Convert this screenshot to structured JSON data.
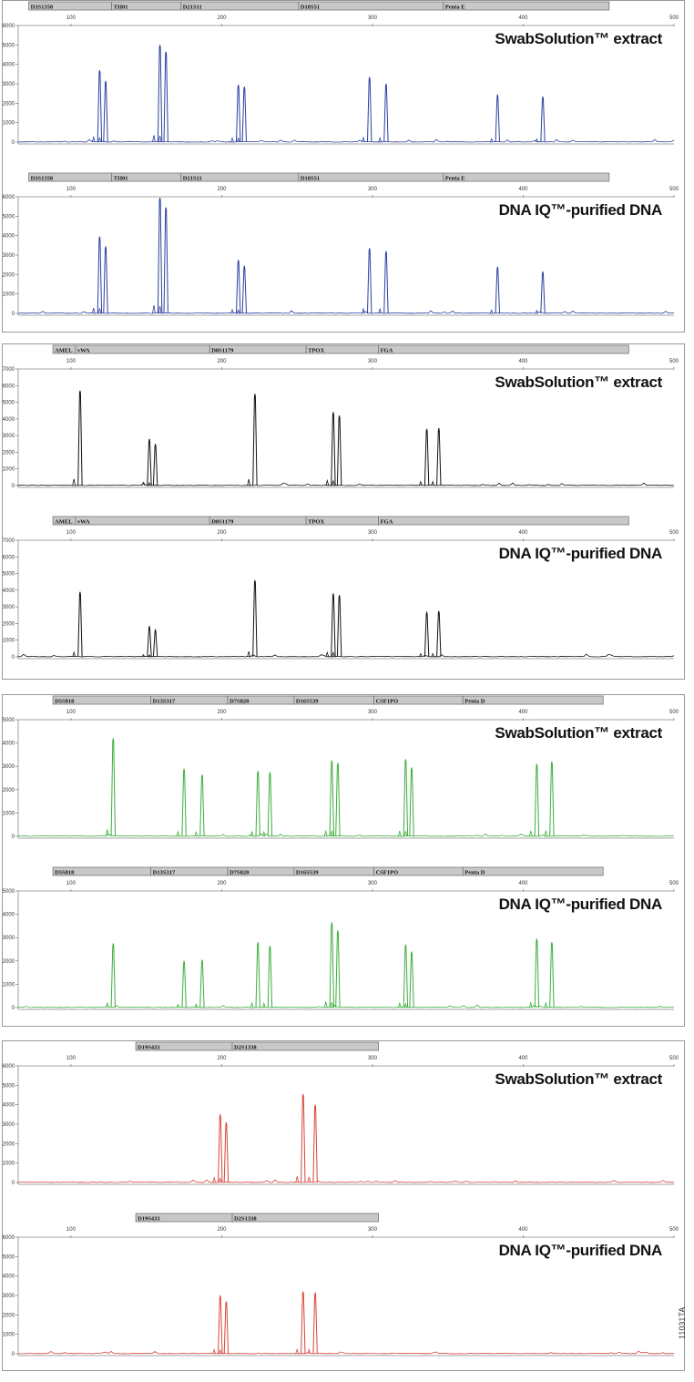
{
  "figure_id": "11031TA",
  "chart_data": [
    {
      "type": "line",
      "dye_color": "#2b3fa0",
      "x_ticks": [
        100,
        200,
        300,
        400,
        500
      ],
      "xlim": [
        65,
        500
      ],
      "loci": [
        {
          "name": "D3S1358",
          "start": 72,
          "end": 127
        },
        {
          "name": "TH01",
          "start": 127,
          "end": 173
        },
        {
          "name": "D21S11",
          "start": 173,
          "end": 251
        },
        {
          "name": "D18S51",
          "start": 251,
          "end": 347
        },
        {
          "name": "Penta E",
          "start": 347,
          "end": 457
        }
      ],
      "lanes": [
        {
          "label": "SwabSolution™ extract",
          "ylim": [
            0,
            6000
          ],
          "y_ticks": [
            0,
            1000,
            2000,
            3000,
            4000,
            5000,
            6000
          ],
          "peaks": [
            {
              "x": 119,
              "height": 3700
            },
            {
              "x": 123,
              "height": 3150
            },
            {
              "x": 159,
              "height": 5000
            },
            {
              "x": 163,
              "height": 4650
            },
            {
              "x": 211,
              "height": 2950
            },
            {
              "x": 215,
              "height": 2850
            },
            {
              "x": 298,
              "height": 3350
            },
            {
              "x": 309,
              "height": 3000
            },
            {
              "x": 383,
              "height": 2450
            },
            {
              "x": 413,
              "height": 2350
            }
          ]
        },
        {
          "label": "DNA IQ™-purified DNA",
          "ylim": [
            0,
            6000
          ],
          "y_ticks": [
            0,
            1000,
            2000,
            3000,
            4000,
            5000,
            6000
          ],
          "peaks": [
            {
              "x": 119,
              "height": 3950
            },
            {
              "x": 123,
              "height": 3450
            },
            {
              "x": 159,
              "height": 5950
            },
            {
              "x": 163,
              "height": 5450
            },
            {
              "x": 211,
              "height": 2750
            },
            {
              "x": 215,
              "height": 2450
            },
            {
              "x": 298,
              "height": 3350
            },
            {
              "x": 309,
              "height": 3200
            },
            {
              "x": 383,
              "height": 2400
            },
            {
              "x": 413,
              "height": 2150
            }
          ]
        }
      ]
    },
    {
      "type": "line",
      "dye_color": "#111111",
      "x_ticks": [
        100,
        200,
        300,
        400,
        500
      ],
      "xlim": [
        65,
        500
      ],
      "loci": [
        {
          "name": "AMEL",
          "start": 88,
          "end": 103
        },
        {
          "name": "vWA",
          "start": 103,
          "end": 192
        },
        {
          "name": "D8S1179",
          "start": 192,
          "end": 256
        },
        {
          "name": "TPOX",
          "start": 256,
          "end": 304
        },
        {
          "name": "FGA",
          "start": 304,
          "end": 470
        }
      ],
      "lanes": [
        {
          "label": "SwabSolution™ extract",
          "ylim": [
            0,
            7000
          ],
          "y_ticks": [
            0,
            1000,
            2000,
            3000,
            4000,
            5000,
            6000,
            7000
          ],
          "peaks": [
            {
              "x": 106,
              "height": 5700
            },
            {
              "x": 152,
              "height": 2800
            },
            {
              "x": 156,
              "height": 2500
            },
            {
              "x": 222,
              "height": 5500
            },
            {
              "x": 274,
              "height": 4400
            },
            {
              "x": 278,
              "height": 4200
            },
            {
              "x": 336,
              "height": 3400
            },
            {
              "x": 344,
              "height": 3450
            }
          ]
        },
        {
          "label": "DNA IQ™-purified DNA",
          "ylim": [
            0,
            7000
          ],
          "y_ticks": [
            0,
            1000,
            2000,
            3000,
            4000,
            5000,
            6000,
            7000
          ],
          "peaks": [
            {
              "x": 106,
              "height": 3900
            },
            {
              "x": 152,
              "height": 1850
            },
            {
              "x": 156,
              "height": 1650
            },
            {
              "x": 222,
              "height": 4600
            },
            {
              "x": 274,
              "height": 3800
            },
            {
              "x": 278,
              "height": 3700
            },
            {
              "x": 336,
              "height": 2700
            },
            {
              "x": 344,
              "height": 2750
            }
          ]
        }
      ]
    },
    {
      "type": "line",
      "dye_color": "#3cae3c",
      "x_ticks": [
        100,
        200,
        300,
        400,
        500
      ],
      "xlim": [
        65,
        500
      ],
      "loci": [
        {
          "name": "D5S818",
          "start": 88,
          "end": 153
        },
        {
          "name": "D13S317",
          "start": 153,
          "end": 204
        },
        {
          "name": "D7S820",
          "start": 204,
          "end": 248
        },
        {
          "name": "D16S539",
          "start": 248,
          "end": 301
        },
        {
          "name": "CSF1PO",
          "start": 301,
          "end": 360
        },
        {
          "name": "Penta D",
          "start": 360,
          "end": 453
        }
      ],
      "lanes": [
        {
          "label": "SwabSolution™ extract",
          "ylim": [
            0,
            5000
          ],
          "y_ticks": [
            0,
            1000,
            2000,
            3000,
            4000,
            5000
          ],
          "peaks": [
            {
              "x": 128,
              "height": 4200
            },
            {
              "x": 175,
              "height": 2900
            },
            {
              "x": 187,
              "height": 2650
            },
            {
              "x": 224,
              "height": 2800
            },
            {
              "x": 232,
              "height": 2750
            },
            {
              "x": 273,
              "height": 3250
            },
            {
              "x": 277,
              "height": 3150
            },
            {
              "x": 322,
              "height": 3300
            },
            {
              "x": 326,
              "height": 2950
            },
            {
              "x": 409,
              "height": 3100
            },
            {
              "x": 419,
              "height": 3200
            }
          ]
        },
        {
          "label": "DNA IQ™-purified DNA",
          "ylim": [
            0,
            5000
          ],
          "y_ticks": [
            0,
            1000,
            2000,
            3000,
            4000,
            5000
          ],
          "peaks": [
            {
              "x": 128,
              "height": 2750
            },
            {
              "x": 175,
              "height": 2000
            },
            {
              "x": 187,
              "height": 2050
            },
            {
              "x": 224,
              "height": 2800
            },
            {
              "x": 232,
              "height": 2650
            },
            {
              "x": 273,
              "height": 3650
            },
            {
              "x": 277,
              "height": 3300
            },
            {
              "x": 322,
              "height": 2700
            },
            {
              "x": 326,
              "height": 2400
            },
            {
              "x": 409,
              "height": 2950
            },
            {
              "x": 419,
              "height": 2800
            }
          ]
        }
      ]
    },
    {
      "type": "line",
      "dye_color": "#d9453b",
      "x_ticks": [
        100,
        200,
        300,
        400,
        500
      ],
      "xlim": [
        65,
        500
      ],
      "loci": [
        {
          "name": "D19S433",
          "start": 143,
          "end": 207
        },
        {
          "name": "D2S1338",
          "start": 207,
          "end": 304
        }
      ],
      "lanes": [
        {
          "label": "SwabSolution™ extract",
          "ylim": [
            0,
            6000
          ],
          "y_ticks": [
            0,
            1000,
            2000,
            3000,
            4000,
            5000,
            6000
          ],
          "peaks": [
            {
              "x": 199,
              "height": 3500
            },
            {
              "x": 203,
              "height": 3100
            },
            {
              "x": 254,
              "height": 4550
            },
            {
              "x": 262,
              "height": 4000
            }
          ]
        },
        {
          "label": "DNA IQ™-purified DNA",
          "ylim": [
            0,
            6000
          ],
          "y_ticks": [
            0,
            1000,
            2000,
            3000,
            4000,
            5000,
            6000
          ],
          "peaks": [
            {
              "x": 199,
              "height": 3000
            },
            {
              "x": 203,
              "height": 2700
            },
            {
              "x": 254,
              "height": 3200
            },
            {
              "x": 262,
              "height": 3150
            }
          ]
        }
      ]
    }
  ]
}
